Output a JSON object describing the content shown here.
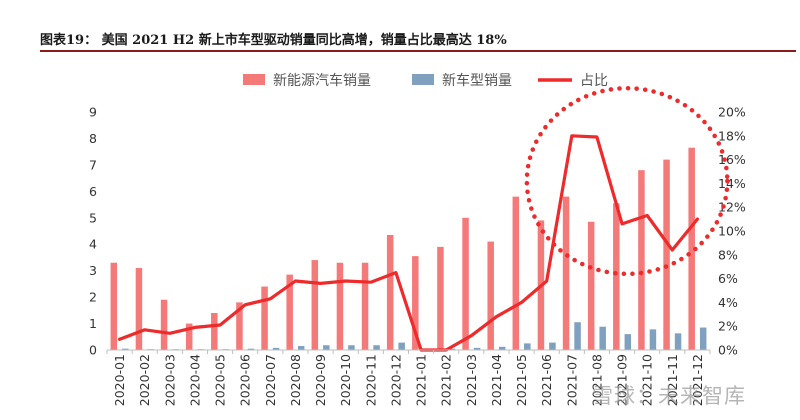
{
  "title": "图表19：  美国 2021 H2 新上市车型驱动销量同比高增，销量占比最高达 18%",
  "colors": {
    "ev_bar": "#f47a7a",
    "new_model_bar": "#7fa1bf",
    "share_line": "#ee2a2a",
    "title_rule": "#8c1c1c",
    "annotation": "#ee2a2a"
  },
  "watermark": "雪球：未来智库",
  "chart_data": {
    "type": "bar",
    "title": "美国 2021 H2 新上市车型驱动销量同比高增，销量占比最高达 18%",
    "categories": [
      "2020-01",
      "2020-02",
      "2020-03",
      "2020-04",
      "2020-05",
      "2020-06",
      "2020-07",
      "2020-08",
      "2020-09",
      "2020-10",
      "2020-11",
      "2020-12",
      "2021-01",
      "2021-02",
      "2021-03",
      "2021-04",
      "2021-05",
      "2021-06",
      "2021-07",
      "2021-08",
      "2021-09",
      "2021-10",
      "2021-11",
      "2021-12"
    ],
    "series": [
      {
        "name": "新能源汽车销量",
        "type": "bar",
        "axis": "left",
        "values": [
          3.3,
          3.1,
          1.9,
          1.0,
          1.4,
          1.8,
          2.4,
          2.85,
          3.4,
          3.3,
          3.3,
          4.35,
          3.55,
          3.9,
          5.0,
          4.1,
          5.8,
          4.9,
          5.8,
          4.85,
          5.55,
          6.8,
          7.2,
          7.65
        ]
      },
      {
        "name": "新车型销量",
        "type": "bar",
        "axis": "left",
        "values": [
          0.05,
          0.03,
          0.03,
          0.03,
          0.03,
          0.05,
          0.08,
          0.15,
          0.18,
          0.18,
          0.18,
          0.28,
          0.02,
          0.05,
          0.08,
          0.12,
          0.25,
          0.28,
          1.05,
          0.88,
          0.6,
          0.78,
          0.63,
          0.85
        ]
      },
      {
        "name": "占比",
        "type": "line",
        "axis": "right",
        "values": [
          0.009,
          0.017,
          0.014,
          0.019,
          0.021,
          0.038,
          0.043,
          0.058,
          0.056,
          0.058,
          0.057,
          0.065,
          0.0,
          0.0,
          0.012,
          0.028,
          0.04,
          0.058,
          0.18,
          0.179,
          0.106,
          0.113,
          0.084,
          0.11
        ]
      }
    ],
    "y_left": {
      "min": 0,
      "max": 9,
      "ticks": [
        "0",
        "1",
        "2",
        "3",
        "4",
        "5",
        "6",
        "7",
        "8",
        "9"
      ]
    },
    "y_right": {
      "min": 0,
      "max": 0.2,
      "ticks": [
        "0%",
        "2%",
        "4%",
        "6%",
        "8%",
        "10%",
        "12%",
        "14%",
        "16%",
        "18%",
        "20%"
      ]
    },
    "legend_position": "top-center",
    "grid": false,
    "annotation": {
      "shape": "dotted-circle",
      "center_category": "2021-09",
      "center_value": 0.142,
      "radius_value": 0.078
    }
  }
}
